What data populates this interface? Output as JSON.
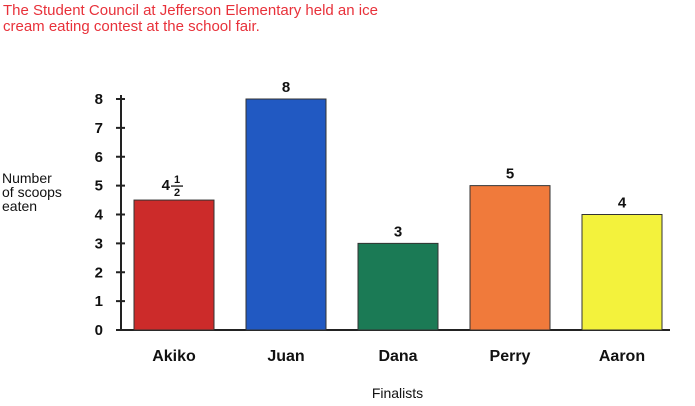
{
  "title_lines": [
    "The Student Council at Jefferson Elementary held an ice",
    "cream eating contest at the school fair."
  ],
  "chart_data": {
    "type": "bar",
    "title": "The Student Council at Jefferson Elementary held an ice cream eating contest at the school fair.",
    "ylabel": "Number\nof scoops\neaten",
    "xlabel": "Finalists",
    "ylim": [
      0,
      8
    ],
    "yticks": [
      0,
      1,
      2,
      3,
      4,
      5,
      6,
      7,
      8
    ],
    "categories": [
      "Akiko",
      "Juan",
      "Dana",
      "Perry",
      "Aaron"
    ],
    "values": [
      4.5,
      8,
      3,
      5,
      4
    ],
    "data_labels": [
      "4 1/2",
      "8",
      "3",
      "5",
      "4"
    ],
    "colors": [
      "#cc2b2a",
      "#2159c2",
      "#1b7a55",
      "#f07a3b",
      "#f3f23c"
    ],
    "grid": false,
    "legend": "none"
  }
}
